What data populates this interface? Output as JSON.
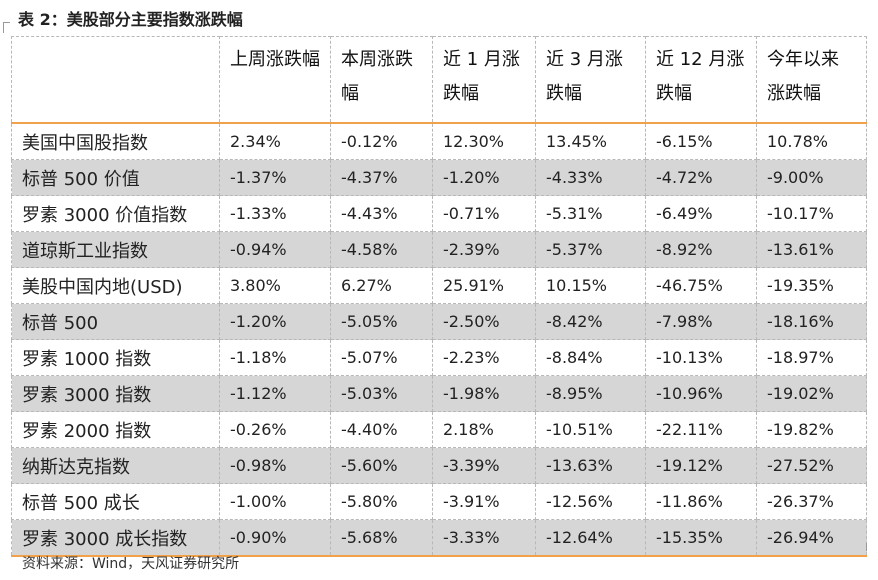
{
  "title": "表 2：美股部分主要指数涨跌幅",
  "table": {
    "headers": [
      "",
      "上周涨跌幅",
      "本周涨跌幅",
      "近 1 月涨跌幅",
      "近 3 月涨跌幅",
      "近 12 月涨跌幅",
      "今年以来涨跌幅"
    ],
    "rows": [
      [
        "美国中国股指数",
        "2.34%",
        "-0.12%",
        "12.30%",
        "13.45%",
        "-6.15%",
        "10.78%"
      ],
      [
        "标普 500 价值",
        "-1.37%",
        "-4.37%",
        "-1.20%",
        "-4.33%",
        "-4.72%",
        "-9.00%"
      ],
      [
        "罗素 3000 价值指数",
        "-1.33%",
        "-4.43%",
        "-0.71%",
        "-5.31%",
        "-6.49%",
        "-10.17%"
      ],
      [
        "道琼斯工业指数",
        "-0.94%",
        "-4.58%",
        "-2.39%",
        "-5.37%",
        "-8.92%",
        "-13.61%"
      ],
      [
        "美股中国内地(USD)",
        "3.80%",
        "6.27%",
        "25.91%",
        "10.15%",
        "-46.75%",
        "-19.35%"
      ],
      [
        "标普 500",
        "-1.20%",
        "-5.05%",
        "-2.50%",
        "-8.42%",
        "-7.98%",
        "-18.16%"
      ],
      [
        "罗素 1000 指数",
        "-1.18%",
        "-5.07%",
        "-2.23%",
        "-8.84%",
        "-10.13%",
        "-18.97%"
      ],
      [
        "罗素 3000 指数",
        "-1.12%",
        "-5.03%",
        "-1.98%",
        "-8.95%",
        "-10.96%",
        "-19.02%"
      ],
      [
        "罗素 2000 指数",
        "-0.26%",
        "-4.40%",
        "2.18%",
        "-10.51%",
        "-22.11%",
        "-19.82%"
      ],
      [
        "纳斯达克指数",
        "-0.98%",
        "-5.60%",
        "-3.39%",
        "-13.63%",
        "-19.12%",
        "-27.52%"
      ],
      [
        "标普 500 成长",
        "-1.00%",
        "-5.80%",
        "-3.91%",
        "-12.56%",
        "-11.86%",
        "-26.37%"
      ],
      [
        "罗素 3000 成长指数",
        "-0.90%",
        "-5.68%",
        "-3.33%",
        "-12.64%",
        "-15.35%",
        "-26.94%"
      ]
    ]
  },
  "source": "资料来源：Wind，天风证券研究所",
  "colors": {
    "accent_rule": "#f0a14a",
    "stripe": "#d6d6d6"
  }
}
